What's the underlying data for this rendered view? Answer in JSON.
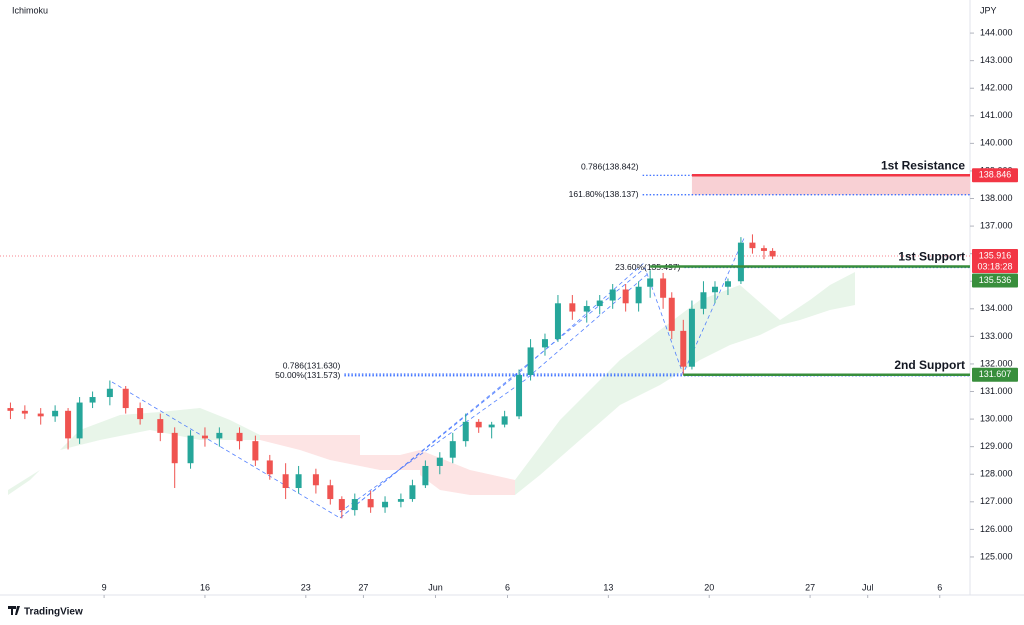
{
  "chart_data": {
    "type": "candlestick",
    "indicator": "Ichimoku",
    "currency": "JPY",
    "brand": "TradingView",
    "xlim": [
      -6.67,
      60.1
    ],
    "xticks": [
      {
        "value": 0,
        "label": "9"
      },
      {
        "value": 7,
        "label": "16"
      },
      {
        "value": 14,
        "label": "23"
      },
      {
        "value": 18,
        "label": "27"
      },
      {
        "value": 23,
        "label": "Jun"
      },
      {
        "value": 28,
        "label": "6"
      },
      {
        "value": 35,
        "label": "13"
      },
      {
        "value": 42,
        "label": "20"
      },
      {
        "value": 49,
        "label": "27"
      },
      {
        "value": 53,
        "label": "Jul"
      },
      {
        "value": 58,
        "label": "6"
      }
    ],
    "ylim": [
      123.62,
      145.2
    ],
    "yticks": [
      {
        "value": 125,
        "label": "125.000"
      },
      {
        "value": 126,
        "label": "126.000"
      },
      {
        "value": 127,
        "label": "127.000"
      },
      {
        "value": 128,
        "label": "128.000"
      },
      {
        "value": 129,
        "label": "129.000"
      },
      {
        "value": 130,
        "label": "130.000"
      },
      {
        "value": 131,
        "label": "131.000"
      },
      {
        "value": 132,
        "label": "132.000"
      },
      {
        "value": 133,
        "label": "133.000"
      },
      {
        "value": 134,
        "label": "134.000"
      },
      {
        "value": 135,
        "label": "135.000"
      },
      {
        "value": 136,
        "label": "136.000"
      },
      {
        "value": 137,
        "label": "137.000"
      },
      {
        "value": 138,
        "label": "138.000"
      },
      {
        "value": 139,
        "label": "139.000"
      },
      {
        "value": 140,
        "label": "140.000"
      },
      {
        "value": 141,
        "label": "141.000"
      },
      {
        "value": 142,
        "label": "142.000"
      },
      {
        "value": 143,
        "label": "143.000"
      },
      {
        "value": 144,
        "label": "144.000"
      }
    ],
    "up_color": "#26a69a",
    "down_color": "#ef5350",
    "x": [
      -6.5,
      -5.5,
      -4.4,
      -3.4,
      -2.5,
      -1.7,
      -0.8,
      0.4,
      1.5,
      2.5,
      3.9,
      4.9,
      6.0,
      7.0,
      8.0,
      9.4,
      10.5,
      11.5,
      12.6,
      13.5,
      14.7,
      15.7,
      16.5,
      17.4,
      18.5,
      19.5,
      20.6,
      21.4,
      22.3,
      23.3,
      24.2,
      25.1,
      26.0,
      26.9,
      27.8,
      28.8,
      29.6,
      30.6,
      31.5,
      32.5,
      33.5,
      34.4,
      35.3,
      36.2,
      37.1,
      37.9,
      38.8,
      39.4,
      40.2,
      40.8,
      41.6,
      42.4,
      43.3,
      44.2,
      45.0,
      45.8,
      46.4
    ],
    "open": [
      130.4,
      130.3,
      130.2,
      130.1,
      130.3,
      129.3,
      130.6,
      130.8,
      131.1,
      130.4,
      130.0,
      129.5,
      128.4,
      129.4,
      129.3,
      129.5,
      129.2,
      128.5,
      128.0,
      127.5,
      128.0,
      127.6,
      127.1,
      126.7,
      127.1,
      126.8,
      127.0,
      127.1,
      127.6,
      128.3,
      128.6,
      129.2,
      129.9,
      129.7,
      129.8,
      130.1,
      131.6,
      132.6,
      132.9,
      134.2,
      133.9,
      134.1,
      134.3,
      134.7,
      134.2,
      134.8,
      135.1,
      134.4,
      133.2,
      131.9,
      134.0,
      134.6,
      134.8,
      135.0,
      136.4,
      136.2,
      136.1
    ],
    "high": [
      130.6,
      130.5,
      130.4,
      130.5,
      130.4,
      130.8,
      131.0,
      131.4,
      131.2,
      130.6,
      130.2,
      129.7,
      129.6,
      129.7,
      129.7,
      129.7,
      129.4,
      128.7,
      128.4,
      128.3,
      128.2,
      127.8,
      127.2,
      127.3,
      127.4,
      127.2,
      127.3,
      127.8,
      128.5,
      128.8,
      129.5,
      130.2,
      130.0,
      129.9,
      130.3,
      131.8,
      132.9,
      133.1,
      134.5,
      134.5,
      134.3,
      134.5,
      134.9,
      134.9,
      135.0,
      135.4,
      135.3,
      134.6,
      133.6,
      134.3,
      135.0,
      135.0,
      135.1,
      136.6,
      136.7,
      136.3,
      136.2
    ],
    "low": [
      130.0,
      130.0,
      129.8,
      129.9,
      128.9,
      129.1,
      130.4,
      130.5,
      130.2,
      129.8,
      129.2,
      127.5,
      128.2,
      129.0,
      129.0,
      128.9,
      128.3,
      127.8,
      127.1,
      127.3,
      127.3,
      126.9,
      126.4,
      126.5,
      126.6,
      126.6,
      126.8,
      127.0,
      127.5,
      128.0,
      128.4,
      129.0,
      129.5,
      129.3,
      129.7,
      130.0,
      131.4,
      132.3,
      132.8,
      133.6,
      133.5,
      133.8,
      134.0,
      133.9,
      133.9,
      134.4,
      134.0,
      132.9,
      131.6,
      131.8,
      133.8,
      134.2,
      134.5,
      134.9,
      136.0,
      135.8,
      135.8
    ],
    "close": [
      130.3,
      130.2,
      130.1,
      130.3,
      129.3,
      130.6,
      130.8,
      131.1,
      130.4,
      130.0,
      129.5,
      128.4,
      129.4,
      129.3,
      129.5,
      129.2,
      128.5,
      128.0,
      127.5,
      128.0,
      127.6,
      127.1,
      126.7,
      127.1,
      126.8,
      127.0,
      127.1,
      127.6,
      128.3,
      128.6,
      129.2,
      129.9,
      129.7,
      129.8,
      130.1,
      131.6,
      132.6,
      132.9,
      134.2,
      133.9,
      134.1,
      134.3,
      134.7,
      134.2,
      134.8,
      135.1,
      134.4,
      133.2,
      131.9,
      134.0,
      134.6,
      134.8,
      135.0,
      136.4,
      136.2,
      136.1,
      135.9
    ],
    "levels": [
      {
        "name": "1st Resistance",
        "value": 138.846,
        "from": 40.8,
        "color": "#f23645"
      },
      {
        "name": "1st Support",
        "value": 135.536,
        "from": 37.9,
        "color": "#388e3c"
      },
      {
        "name": "2nd Support",
        "value": 131.607,
        "from": 40.2,
        "color": "#388e3c"
      }
    ],
    "zone": {
      "from": 40.8,
      "low": 138.137,
      "high": 138.846,
      "color": "#f8d0d4"
    },
    "current": {
      "value": 135.916,
      "countdown": "03:18:28",
      "color": "#f23645"
    },
    "annotations": [
      {
        "label": "0.786(138.842)",
        "value": 138.842,
        "x": 37.1
      },
      {
        "label": "161.80%(138.137)",
        "value": 138.137,
        "x": 37.1
      },
      {
        "label": "23.60%(135.497)",
        "value": 135.497,
        "x": 40.0
      },
      {
        "label": "0.786(131.630)",
        "value": 131.63,
        "x": 16.4
      },
      {
        "label": "50.00%(131.573)",
        "value": 131.573,
        "x": 16.4
      }
    ]
  }
}
